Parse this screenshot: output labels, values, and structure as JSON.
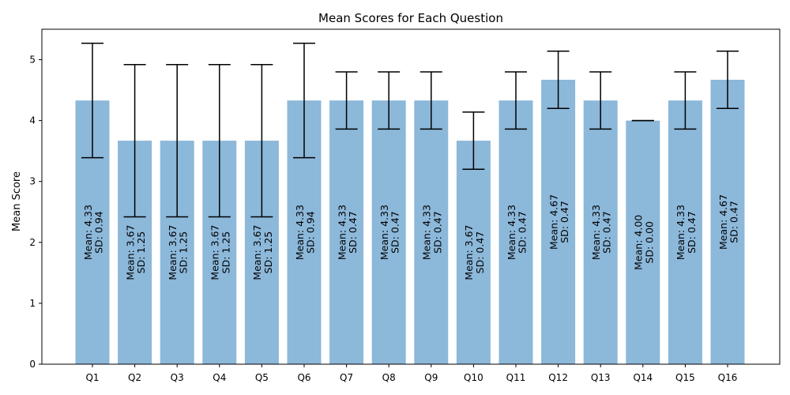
{
  "chart_data": {
    "type": "bar",
    "title": "Mean Scores for Each Question",
    "xlabel": "",
    "ylabel": "Mean Score",
    "ylim": [
      0,
      5.5
    ],
    "yticks": [
      0,
      1,
      2,
      3,
      4,
      5
    ],
    "grid": false,
    "error_bars": true,
    "bar_color": "#8cb8da",
    "categories": [
      "Q1",
      "Q2",
      "Q3",
      "Q4",
      "Q5",
      "Q6",
      "Q7",
      "Q8",
      "Q9",
      "Q10",
      "Q11",
      "Q12",
      "Q13",
      "Q14",
      "Q15",
      "Q16"
    ],
    "values": [
      4.33,
      3.67,
      3.67,
      3.67,
      3.67,
      4.33,
      4.33,
      4.33,
      4.33,
      3.67,
      4.33,
      4.67,
      4.33,
      4.0,
      4.33,
      4.67
    ],
    "sd": [
      0.94,
      1.25,
      1.25,
      1.25,
      1.25,
      0.94,
      0.47,
      0.47,
      0.47,
      0.47,
      0.47,
      0.47,
      0.47,
      0.0,
      0.47,
      0.47
    ],
    "bar_labels": [
      [
        "Mean: 4.33",
        "SD: 0.94"
      ],
      [
        "Mean: 3.67",
        "SD: 1.25"
      ],
      [
        "Mean: 3.67",
        "SD: 1.25"
      ],
      [
        "Mean: 3.67",
        "SD: 1.25"
      ],
      [
        "Mean: 3.67",
        "SD: 1.25"
      ],
      [
        "Mean: 4.33",
        "SD: 0.94"
      ],
      [
        "Mean: 4.33",
        "SD: 0.47"
      ],
      [
        "Mean: 4.33",
        "SD: 0.47"
      ],
      [
        "Mean: 4.33",
        "SD: 0.47"
      ],
      [
        "Mean: 3.67",
        "SD: 0.47"
      ],
      [
        "Mean: 4.33",
        "SD: 0.47"
      ],
      [
        "Mean: 4.67",
        "SD: 0.47"
      ],
      [
        "Mean: 4.33",
        "SD: 0.47"
      ],
      [
        "Mean: 4.00",
        "SD: 0.00"
      ],
      [
        "Mean: 4.33",
        "SD: 0.47"
      ],
      [
        "Mean: 4.67",
        "SD: 0.47"
      ]
    ]
  }
}
